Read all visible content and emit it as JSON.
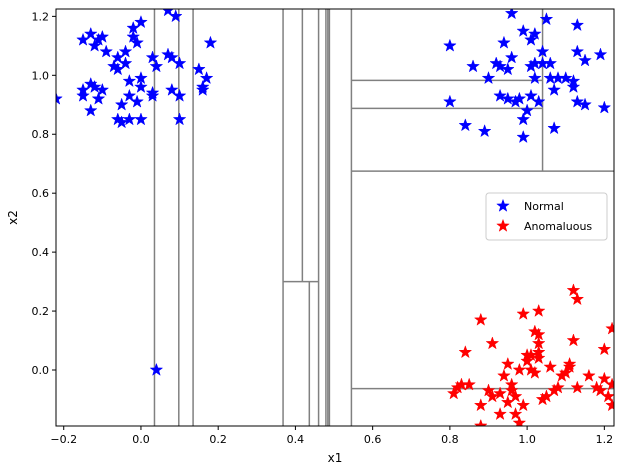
{
  "chart_data": {
    "type": "scatter",
    "title": "",
    "xlabel": "x1",
    "ylabel": "x2",
    "xlim": [
      -0.22,
      1.225
    ],
    "ylim": [
      -0.19,
      1.225
    ],
    "xticks": [
      -0.2,
      0.0,
      0.2,
      0.4,
      0.6,
      0.8,
      1.0,
      1.2
    ],
    "xtick_labels": [
      "−0.2",
      "0.0",
      "0.2",
      "0.4",
      "0.6",
      "0.8",
      "1.0",
      "1.2"
    ],
    "yticks": [
      0.0,
      0.2,
      0.4,
      0.6,
      0.8,
      1.0,
      1.2
    ],
    "ytick_labels": [
      "0.0",
      "0.2",
      "0.4",
      "0.6",
      "0.8",
      "1.0",
      "1.2"
    ],
    "grid": false,
    "legend_position": "center-right",
    "series": [
      {
        "name": "Normal",
        "color": "#0000ff",
        "marker": "star",
        "points": [
          [
            -0.22,
            0.92
          ],
          [
            -0.15,
            1.12
          ],
          [
            -0.13,
            1.14
          ],
          [
            -0.12,
            1.1
          ],
          [
            -0.11,
            1.12
          ],
          [
            -0.1,
            1.13
          ],
          [
            -0.09,
            1.08
          ],
          [
            -0.15,
            0.95
          ],
          [
            -0.15,
            0.93
          ],
          [
            -0.13,
            0.97
          ],
          [
            -0.12,
            0.96
          ],
          [
            -0.11,
            0.92
          ],
          [
            -0.1,
            0.95
          ],
          [
            -0.13,
            0.88
          ],
          [
            -0.07,
            1.03
          ],
          [
            -0.06,
            1.02
          ],
          [
            -0.06,
            1.06
          ],
          [
            -0.04,
            1.04
          ],
          [
            -0.04,
            1.08
          ],
          [
            -0.03,
            0.98
          ],
          [
            -0.02,
            1.16
          ],
          [
            -0.02,
            1.13
          ],
          [
            0.0,
            1.18
          ],
          [
            -0.01,
            1.11
          ],
          [
            -0.03,
            0.93
          ],
          [
            0.0,
            0.99
          ],
          [
            -0.05,
            0.9
          ],
          [
            -0.06,
            0.85
          ],
          [
            -0.05,
            0.84
          ],
          [
            -0.03,
            0.85
          ],
          [
            -0.01,
            0.91
          ],
          [
            0.0,
            0.85
          ],
          [
            0.0,
            0.96
          ],
          [
            0.03,
            0.93
          ],
          [
            0.03,
            0.94
          ],
          [
            0.03,
            1.06
          ],
          [
            0.04,
            1.03
          ],
          [
            0.07,
            1.07
          ],
          [
            0.07,
            1.22
          ],
          [
            0.08,
            0.95
          ],
          [
            0.08,
            1.06
          ],
          [
            0.09,
            1.2
          ],
          [
            0.1,
            1.04
          ],
          [
            0.1,
            0.93
          ],
          [
            0.1,
            0.85
          ],
          [
            0.15,
            1.02
          ],
          [
            0.16,
            0.96
          ],
          [
            0.16,
            0.95
          ],
          [
            0.17,
            0.99
          ],
          [
            0.18,
            1.11
          ],
          [
            0.04,
            0.0
          ],
          [
            0.8,
            1.1
          ],
          [
            0.8,
            0.91
          ],
          [
            0.84,
            0.83
          ],
          [
            0.86,
            1.03
          ],
          [
            0.89,
            0.81
          ],
          [
            0.9,
            0.99
          ],
          [
            0.92,
            1.04
          ],
          [
            0.93,
            1.03
          ],
          [
            0.93,
            0.93
          ],
          [
            0.94,
            1.11
          ],
          [
            0.95,
            1.02
          ],
          [
            0.95,
            0.92
          ],
          [
            0.96,
            1.21
          ],
          [
            0.96,
            1.06
          ],
          [
            0.97,
            0.91
          ],
          [
            0.98,
            0.92
          ],
          [
            0.99,
            1.15
          ],
          [
            0.99,
            0.85
          ],
          [
            0.99,
            0.79
          ],
          [
            1.0,
            1.25
          ],
          [
            1.0,
            0.88
          ],
          [
            1.01,
            1.12
          ],
          [
            1.01,
            1.03
          ],
          [
            1.01,
            0.93
          ],
          [
            1.02,
            1.14
          ],
          [
            1.02,
            1.04
          ],
          [
            1.02,
            0.99
          ],
          [
            1.03,
            0.91
          ],
          [
            1.04,
            1.08
          ],
          [
            1.04,
            1.04
          ],
          [
            1.05,
            1.19
          ],
          [
            1.06,
            1.04
          ],
          [
            1.06,
            0.99
          ],
          [
            1.07,
            0.95
          ],
          [
            1.07,
            0.82
          ],
          [
            1.08,
            0.99
          ],
          [
            1.1,
            0.99
          ],
          [
            1.12,
            0.98
          ],
          [
            1.12,
            0.96
          ],
          [
            1.13,
            1.17
          ],
          [
            1.13,
            1.08
          ],
          [
            1.13,
            0.91
          ],
          [
            1.15,
            0.9
          ],
          [
            1.15,
            1.05
          ],
          [
            1.19,
            1.07
          ],
          [
            1.2,
            0.89
          ]
        ]
      },
      {
        "name": "Anomaluous",
        "color": "#ff0000",
        "marker": "star",
        "points": [
          [
            0.82,
            -0.06
          ],
          [
            0.81,
            -0.08
          ],
          [
            0.83,
            -0.05
          ],
          [
            0.84,
            0.06
          ],
          [
            0.85,
            -0.05
          ],
          [
            0.88,
            0.17
          ],
          [
            0.88,
            -0.12
          ],
          [
            0.88,
            -0.19
          ],
          [
            0.9,
            -0.07
          ],
          [
            0.91,
            0.09
          ],
          [
            0.91,
            -0.09
          ],
          [
            0.93,
            -0.08
          ],
          [
            0.93,
            -0.15
          ],
          [
            0.94,
            -0.02
          ],
          [
            0.95,
            -0.11
          ],
          [
            0.95,
            0.02
          ],
          [
            0.96,
            -0.05
          ],
          [
            0.96,
            -0.07
          ],
          [
            0.97,
            -0.09
          ],
          [
            0.97,
            -0.15
          ],
          [
            0.98,
            0.0
          ],
          [
            0.98,
            -0.18
          ],
          [
            0.99,
            0.19
          ],
          [
            0.99,
            -0.12
          ],
          [
            1.0,
            0.03
          ],
          [
            1.0,
            0.05
          ],
          [
            1.01,
            0.05
          ],
          [
            1.01,
            0.0
          ],
          [
            1.02,
            0.13
          ],
          [
            1.02,
            -0.01
          ],
          [
            1.03,
            0.2
          ],
          [
            1.03,
            0.12
          ],
          [
            1.03,
            0.09
          ],
          [
            1.03,
            0.06
          ],
          [
            1.03,
            0.04
          ],
          [
            1.04,
            -0.1
          ],
          [
            1.05,
            -0.09
          ],
          [
            1.06,
            0.01
          ],
          [
            1.07,
            -0.07
          ],
          [
            1.08,
            -0.06
          ],
          [
            1.09,
            -0.02
          ],
          [
            1.1,
            -0.01
          ],
          [
            1.11,
            0.01
          ],
          [
            1.11,
            0.02
          ],
          [
            1.12,
            0.27
          ],
          [
            1.12,
            0.1
          ],
          [
            1.13,
            0.24
          ],
          [
            1.13,
            -0.06
          ],
          [
            1.16,
            -0.02
          ],
          [
            1.18,
            -0.06
          ],
          [
            1.19,
            -0.07
          ],
          [
            1.2,
            0.07
          ],
          [
            1.2,
            -0.03
          ],
          [
            1.21,
            -0.09
          ],
          [
            1.22,
            0.14
          ],
          [
            1.22,
            -0.05
          ],
          [
            1.22,
            -0.12
          ]
        ]
      }
    ],
    "split_lines": {
      "vertical": [
        {
          "x": 0.035,
          "y0": -0.19,
          "y1": 1.225
        },
        {
          "x": 0.098,
          "y0": -0.19,
          "y1": 1.225
        },
        {
          "x": 0.135,
          "y0": -0.19,
          "y1": 1.225
        },
        {
          "x": 0.368,
          "y0": -0.19,
          "y1": 1.225
        },
        {
          "x": 0.418,
          "y0": 0.3,
          "y1": 1.225
        },
        {
          "x": 0.436,
          "y0": -0.19,
          "y1": 0.3
        },
        {
          "x": 0.46,
          "y0": -0.19,
          "y1": 1.225
        },
        {
          "x": 0.479,
          "y0": -0.19,
          "y1": 1.225
        },
        {
          "x": 0.484,
          "y0": -0.19,
          "y1": 1.225
        },
        {
          "x": 0.488,
          "y0": -0.19,
          "y1": 1.225
        },
        {
          "x": 0.545,
          "y0": -0.19,
          "y1": 1.225
        },
        {
          "x": 1.04,
          "y0": 0.675,
          "y1": 1.225
        }
      ],
      "horizontal": [
        {
          "y": 0.3,
          "x0": 0.368,
          "x1": 0.46
        },
        {
          "y": 0.675,
          "x0": 0.545,
          "x1": 1.225
        },
        {
          "y": 0.888,
          "x0": 0.545,
          "x1": 1.04
        },
        {
          "y": 0.983,
          "x0": 0.545,
          "x1": 1.04
        },
        {
          "y": -0.063,
          "x0": 0.545,
          "x1": 1.225
        }
      ],
      "color": "#808080"
    }
  }
}
